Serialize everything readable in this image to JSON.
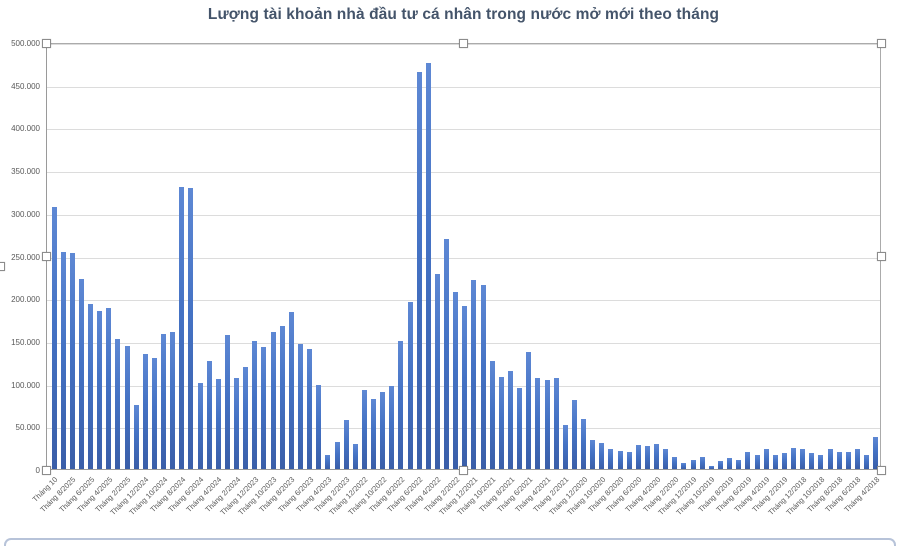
{
  "chart_data": {
    "type": "bar",
    "title": "Lượng tài khoản nhà đầu tư cá nhân trong nước mở mới theo tháng",
    "xlabel": "",
    "ylabel": "",
    "ylim": [
      0,
      500000
    ],
    "grid": true,
    "legend": false,
    "bar_order_note": "most recent month on the left",
    "y_tick_labels": [
      "500.000",
      "450.000",
      "400.000",
      "350.000",
      "300.000",
      "250.000",
      "200.000",
      "150.000",
      "100.000",
      "50.000",
      "0"
    ],
    "x_label_every_n_bars": 2,
    "x_tick_labels": [
      "Tháng 10",
      "Tháng 8/2025",
      "Tháng 6/2025",
      "Tháng 4/2025",
      "Tháng 2/2025",
      "Tháng 12/2024",
      "Tháng 10/2024",
      "Tháng 8/2024",
      "Tháng 6/2024",
      "Tháng 4/2024",
      "Tháng 2/2024",
      "Tháng 12/2023",
      "Tháng 10/2023",
      "Tháng 8/2023",
      "Tháng 6/2023",
      "Tháng 4/2023",
      "Tháng 2/2023",
      "Tháng 12/2022",
      "Tháng 10/2022",
      "Tháng 8/2022",
      "Tháng 6/2022",
      "Tháng 4/2022",
      "Tháng 2/2022",
      "Tháng 12/2021",
      "Tháng 10/2021",
      "Tháng 8/2021",
      "Tháng 6/2021",
      "Tháng 4/2021",
      "Tháng 2/2021",
      "Tháng 12/2020",
      "Tháng 10/2020",
      "Tháng 8/2020",
      "Tháng 6/2020",
      "Tháng 4/2020",
      "Tháng 2/2020",
      "Tháng 12/2019",
      "Tháng 10/2019",
      "Tháng 8/2019",
      "Tháng 6/2019",
      "Tháng 4/2019",
      "Tháng 2/2019",
      "Tháng 12/2018",
      "Tháng 10/2018",
      "Tháng 8/2018",
      "Tháng 6/2018",
      "Tháng 4/2018"
    ],
    "values": [
      307000,
      254000,
      253000,
      222000,
      193000,
      185000,
      188000,
      152000,
      144000,
      75000,
      135000,
      130000,
      158000,
      161000,
      330000,
      329000,
      101000,
      127000,
      105000,
      157000,
      107000,
      120000,
      150000,
      143000,
      161000,
      168000,
      184000,
      146000,
      140000,
      98000,
      16000,
      32000,
      57000,
      29000,
      93000,
      82000,
      90000,
      97000,
      150000,
      196000,
      465000,
      476000,
      228000,
      269000,
      207000,
      191000,
      221000,
      216000,
      126000,
      108000,
      115000,
      95000,
      137000,
      107000,
      104000,
      107000,
      52000,
      81000,
      58000,
      34000,
      30000,
      24000,
      21000,
      20000,
      28000,
      27000,
      29000,
      24000,
      14000,
      7000,
      10000,
      14000,
      4000,
      9000,
      13000,
      11000,
      20000,
      16000,
      24000,
      16000,
      19000,
      25000,
      23000,
      19000,
      16000,
      24000,
      20000,
      20000,
      23000,
      16000,
      38000
    ]
  },
  "colors": {
    "title_text": "#44546a",
    "axis_text": "#595959",
    "gridline": "#dcdcdc",
    "bar_fill": "#4472c4",
    "plot_frame": "#ababab",
    "selection_handle_border": "#8c8c8c",
    "bottom_card_edge": "#b7c3d9"
  }
}
